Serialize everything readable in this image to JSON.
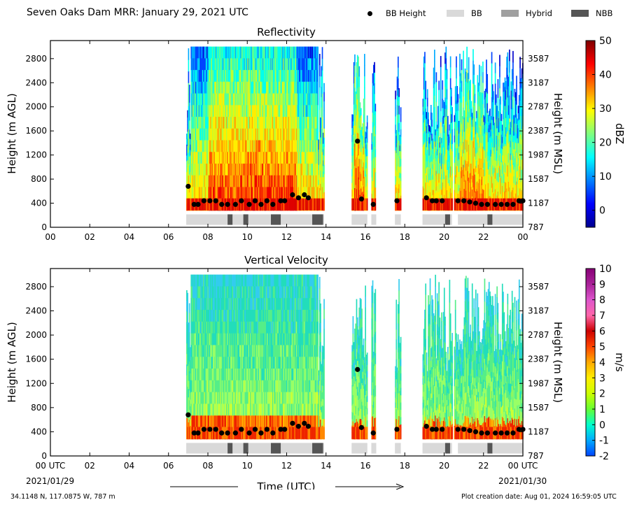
{
  "page_title": "Seven Oaks Dam MRR:  January 29, 2021 UTC",
  "legend": {
    "items": [
      {
        "label": "BB Height",
        "kind": "dot",
        "color": "#000000"
      },
      {
        "label": "BB",
        "kind": "box",
        "color": "#d9d9d9"
      },
      {
        "label": "Hybrid",
        "kind": "box",
        "color": "#a0a0a0"
      },
      {
        "label": "NBB",
        "kind": "box",
        "color": "#555555"
      }
    ]
  },
  "footer": {
    "location": "34.1148 N, 117.0875 W, 787 m",
    "created": "Plot creation date: Aug 01, 2024 16:59:05 UTC",
    "date_start": "2021/01/29",
    "date_end": "2021/01/30",
    "time_label": "Time (UTC)"
  },
  "chart_data": [
    {
      "type": "heatmap",
      "title": "Reflectivity",
      "ylabel": "Height (m AGL)",
      "ylabel_right": "Height (m MSL)",
      "xlim": [
        0,
        24
      ],
      "ylim": [
        0,
        3100
      ],
      "x_ticks": [
        "00",
        "02",
        "04",
        "06",
        "08",
        "10",
        "12",
        "14",
        "16",
        "18",
        "20",
        "22",
        "00"
      ],
      "y_ticks": [
        0,
        400,
        800,
        1200,
        1600,
        2000,
        2400,
        2800
      ],
      "y_ticks_right": [
        "787",
        "1187",
        "1587",
        "1987",
        "2387",
        "2787",
        "3187",
        "3587"
      ],
      "colorbar": {
        "label": "dBZ",
        "min": -5,
        "max": 50,
        "ticks": [
          0,
          10,
          20,
          30,
          40,
          50
        ],
        "colors": [
          "#00008f",
          "#0000ff",
          "#007fff",
          "#00ffff",
          "#7fff7f",
          "#ffff00",
          "#ff7f00",
          "#ff0000",
          "#7f0000"
        ]
      },
      "echo_segments": [
        [
          6.9,
          13.9
        ],
        [
          15.3,
          16.1
        ],
        [
          16.3,
          16.5
        ],
        [
          17.5,
          17.8
        ],
        [
          18.9,
          20.4
        ],
        [
          20.5,
          24.0
        ]
      ],
      "top_extent_hours": [
        7.1,
        13.6
      ],
      "bb_height": {
        "x": [
          7.0,
          7.3,
          7.5,
          7.8,
          8.1,
          8.4,
          8.7,
          9.0,
          9.4,
          9.7,
          10.1,
          10.4,
          10.7,
          11.0,
          11.3,
          11.7,
          11.9,
          12.3,
          12.6,
          12.9,
          13.1,
          15.6,
          15.8,
          16.4,
          17.6,
          19.1,
          19.4,
          19.6,
          19.9,
          20.7,
          21.0,
          21.3,
          21.6,
          21.9,
          22.2,
          22.6,
          22.9,
          23.2,
          23.5,
          23.8,
          24.0
        ],
        "y": [
          680,
          380,
          380,
          440,
          440,
          440,
          380,
          380,
          380,
          440,
          380,
          440,
          380,
          440,
          380,
          440,
          440,
          540,
          490,
          540,
          490,
          1430,
          470,
          380,
          440,
          490,
          440,
          440,
          440,
          440,
          440,
          420,
          400,
          380,
          380,
          380,
          380,
          380,
          380,
          440,
          440
        ]
      },
      "bb_type_bar": [
        {
          "start": 6.9,
          "end": 13.9,
          "kind": "BB"
        },
        {
          "start": 9.0,
          "end": 9.25,
          "kind": "NBB"
        },
        {
          "start": 9.8,
          "end": 10.05,
          "kind": "NBB"
        },
        {
          "start": 11.2,
          "end": 11.7,
          "kind": "NBB"
        },
        {
          "start": 13.3,
          "end": 13.85,
          "kind": "NBB"
        },
        {
          "start": 15.3,
          "end": 16.1,
          "kind": "BB"
        },
        {
          "start": 16.3,
          "end": 16.55,
          "kind": "BB"
        },
        {
          "start": 17.5,
          "end": 17.8,
          "kind": "BB"
        },
        {
          "start": 18.9,
          "end": 20.4,
          "kind": "BB"
        },
        {
          "start": 20.05,
          "end": 20.3,
          "kind": "NBB"
        },
        {
          "start": 20.7,
          "end": 24.0,
          "kind": "BB"
        },
        {
          "start": 22.2,
          "end": 22.45,
          "kind": "NBB"
        }
      ]
    },
    {
      "type": "heatmap",
      "title": "Vertical Velocity",
      "ylabel": "Height (m AGL)",
      "ylabel_right": "Height (m MSL)",
      "xlim": [
        0,
        24
      ],
      "ylim": [
        0,
        3100
      ],
      "x_ticks": [
        "00 UTC",
        "02",
        "04",
        "06",
        "08",
        "10",
        "12",
        "14",
        "16",
        "18",
        "20",
        "22",
        "00 UTC"
      ],
      "y_ticks": [
        0,
        400,
        800,
        1200,
        1600,
        2000,
        2400,
        2800
      ],
      "y_ticks_right": [
        "787",
        "1187",
        "1587",
        "1987",
        "2387",
        "2787",
        "3187",
        "3587"
      ],
      "colorbar": {
        "label": "m/s",
        "min": -2,
        "max": 10,
        "ticks": [
          -2,
          -1,
          0,
          1,
          2,
          3,
          4,
          5,
          6,
          7,
          8,
          9,
          10
        ],
        "colors": [
          "#0044ff",
          "#00aaff",
          "#00ffcc",
          "#66ff33",
          "#ccff00",
          "#ffee00",
          "#ffaa00",
          "#ff4400",
          "#cc0000",
          "#ff66aa",
          "#dd55cc",
          "#aa2299",
          "#880077"
        ]
      },
      "echo_segments": [
        [
          6.9,
          13.9
        ],
        [
          15.3,
          16.1
        ],
        [
          16.3,
          16.5
        ],
        [
          17.5,
          17.8
        ],
        [
          18.9,
          20.4
        ],
        [
          20.5,
          24.0
        ]
      ],
      "top_extent_hours": [
        7.1,
        13.6
      ],
      "bb_height": {
        "x": [
          7.0,
          7.3,
          7.5,
          7.8,
          8.1,
          8.4,
          8.7,
          9.0,
          9.4,
          9.7,
          10.1,
          10.4,
          10.7,
          11.0,
          11.3,
          11.7,
          11.9,
          12.3,
          12.6,
          12.9,
          13.1,
          15.6,
          15.8,
          16.4,
          17.6,
          19.1,
          19.4,
          19.6,
          19.9,
          20.7,
          21.0,
          21.3,
          21.6,
          21.9,
          22.2,
          22.6,
          22.9,
          23.2,
          23.5,
          23.8,
          24.0
        ],
        "y": [
          680,
          380,
          380,
          440,
          440,
          440,
          380,
          380,
          380,
          440,
          380,
          440,
          380,
          440,
          380,
          440,
          440,
          540,
          490,
          540,
          490,
          1430,
          470,
          380,
          440,
          490,
          440,
          440,
          440,
          440,
          440,
          420,
          400,
          380,
          380,
          380,
          380,
          380,
          380,
          440,
          440
        ]
      },
      "bb_type_bar": [
        {
          "start": 6.9,
          "end": 13.9,
          "kind": "BB"
        },
        {
          "start": 9.0,
          "end": 9.25,
          "kind": "NBB"
        },
        {
          "start": 9.8,
          "end": 10.05,
          "kind": "NBB"
        },
        {
          "start": 11.2,
          "end": 11.7,
          "kind": "NBB"
        },
        {
          "start": 13.3,
          "end": 13.85,
          "kind": "NBB"
        },
        {
          "start": 15.3,
          "end": 16.1,
          "kind": "BB"
        },
        {
          "start": 16.3,
          "end": 16.55,
          "kind": "BB"
        },
        {
          "start": 17.5,
          "end": 17.8,
          "kind": "BB"
        },
        {
          "start": 18.9,
          "end": 20.4,
          "kind": "BB"
        },
        {
          "start": 20.05,
          "end": 20.3,
          "kind": "NBB"
        },
        {
          "start": 20.7,
          "end": 24.0,
          "kind": "BB"
        },
        {
          "start": 22.2,
          "end": 22.45,
          "kind": "NBB"
        }
      ]
    }
  ]
}
